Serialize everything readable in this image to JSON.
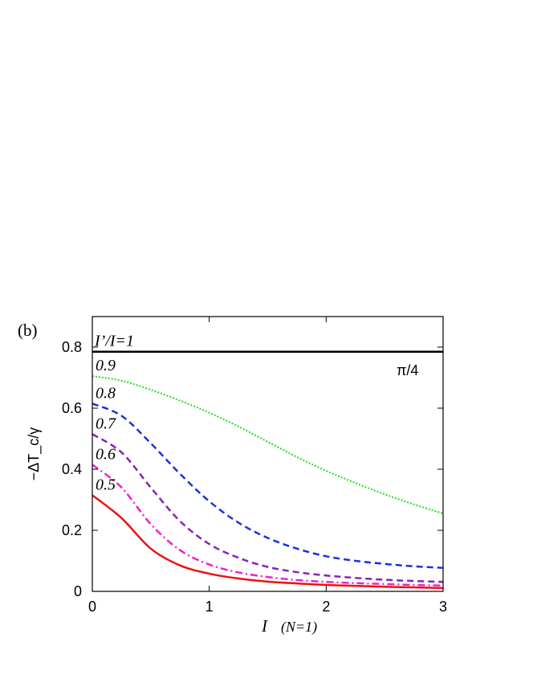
{
  "chart_data": {
    "type": "line",
    "panel_label": "(b)",
    "xlabel": {
      "main": "I",
      "sub": "(N=1)"
    },
    "ylabel": "−ΔT_c/γ",
    "xlim": [
      0,
      3
    ],
    "ylim": [
      0,
      0.9
    ],
    "xticks": [
      "0",
      "1",
      "2",
      "3"
    ],
    "yticks": [
      "0",
      "0.2",
      "0.4",
      "0.6",
      "0.8"
    ],
    "grid": false,
    "legend": "inline labels",
    "annotations": [
      {
        "text": "π/4"
      }
    ],
    "series": [
      {
        "name": "I’/I=1",
        "color": "#000000",
        "dash": "solid",
        "x": [
          0,
          0.5,
          1,
          1.5,
          2,
          2.5,
          3
        ],
        "y": [
          0.785,
          0.785,
          0.785,
          0.785,
          0.785,
          0.785,
          0.785
        ]
      },
      {
        "name": "0.9",
        "color": "#22dd22",
        "dash": "dotted",
        "x": [
          0,
          0.25,
          0.5,
          0.75,
          1,
          1.25,
          1.5,
          1.75,
          2,
          2.25,
          2.5,
          2.75,
          3
        ],
        "y": [
          0.705,
          0.69,
          0.66,
          0.625,
          0.585,
          0.54,
          0.49,
          0.44,
          0.395,
          0.355,
          0.318,
          0.285,
          0.255
        ]
      },
      {
        "name": "0.8",
        "color": "#1a33dd",
        "dash": "dashed",
        "x": [
          0,
          0.25,
          0.5,
          0.75,
          1,
          1.25,
          1.5,
          1.75,
          2,
          2.25,
          2.5,
          2.75,
          3
        ],
        "y": [
          0.615,
          0.575,
          0.485,
          0.385,
          0.295,
          0.225,
          0.175,
          0.14,
          0.115,
          0.1,
          0.09,
          0.082,
          0.077
        ]
      },
      {
        "name": "0.7",
        "color": "#8822bb",
        "dash": "dashed",
        "x": [
          0,
          0.25,
          0.5,
          0.75,
          1,
          1.25,
          1.5,
          1.75,
          2,
          2.25,
          2.5,
          2.75,
          3
        ],
        "y": [
          0.515,
          0.455,
          0.34,
          0.23,
          0.155,
          0.11,
          0.08,
          0.063,
          0.052,
          0.044,
          0.038,
          0.034,
          0.031
        ]
      },
      {
        "name": "0.6",
        "color": "#ee22cc",
        "dash": "dashdot",
        "x": [
          0,
          0.25,
          0.5,
          0.75,
          1,
          1.25,
          1.5,
          1.75,
          2,
          2.25,
          2.5,
          2.75,
          3
        ],
        "y": [
          0.415,
          0.34,
          0.22,
          0.135,
          0.088,
          0.062,
          0.047,
          0.037,
          0.031,
          0.027,
          0.024,
          0.021,
          0.019
        ]
      },
      {
        "name": "0.5",
        "color": "#ee1111",
        "dash": "solid",
        "x": [
          0,
          0.25,
          0.5,
          0.75,
          1,
          1.25,
          1.5,
          1.75,
          2,
          2.25,
          2.5,
          2.75,
          3
        ],
        "y": [
          0.315,
          0.24,
          0.14,
          0.085,
          0.058,
          0.042,
          0.032,
          0.026,
          0.021,
          0.018,
          0.015,
          0.013,
          0.011
        ]
      }
    ]
  }
}
